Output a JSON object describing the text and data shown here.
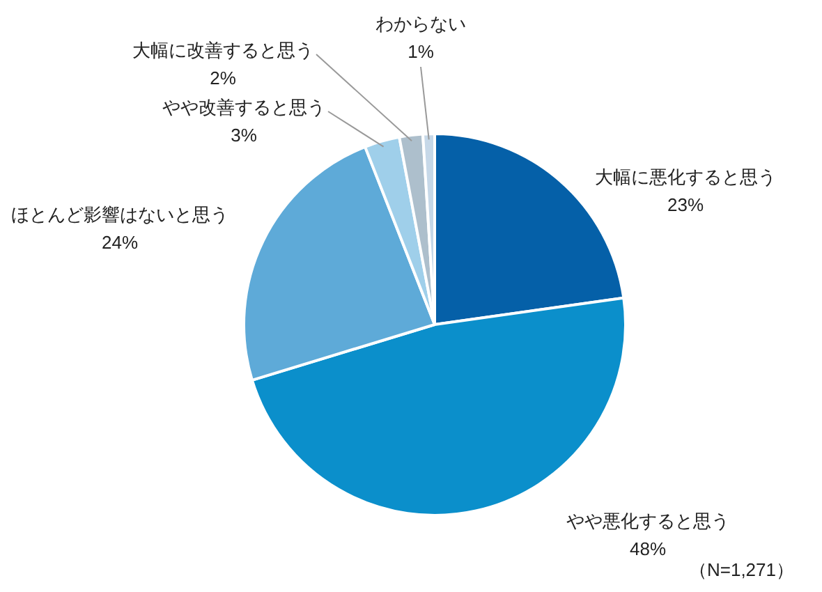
{
  "chart_data": {
    "type": "pie",
    "categories": [
      "大幅に悪化すると思う",
      "やや悪化すると思う",
      "ほとんど影響はないと思う",
      "やや改善すると思う",
      "大幅に改善すると思う",
      "わからない"
    ],
    "values": [
      23,
      48,
      24,
      3,
      2,
      1
    ],
    "colors": [
      "#0560a8",
      "#0b8fcb",
      "#5eaad8",
      "#9fcfea",
      "#adbfcc",
      "#c6d8e8"
    ],
    "value_labels": [
      "23%",
      "48%",
      "24%",
      "3%",
      "2%",
      "1%"
    ],
    "legend": false,
    "annotations": [
      "（N=1,271）"
    ]
  }
}
